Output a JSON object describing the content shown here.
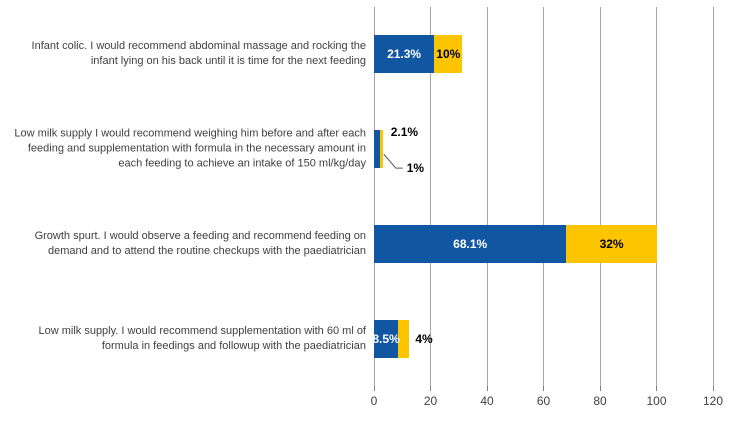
{
  "chart_data": {
    "type": "bar",
    "orientation": "horizontal",
    "stacked": true,
    "title": "",
    "xlabel": "",
    "ylabel": "",
    "xlim": [
      0,
      120
    ],
    "x_ticks": [
      0,
      20,
      40,
      60,
      80,
      100,
      120
    ],
    "grid": "vertical",
    "legend": "none",
    "categories": [
      "Infant colic. I would recommend abdominal massage and rocking the infant lying on his back until it is time for the next feeding",
      "Low milk supply I would recommend weighing him before and after each feeding and supplementation with formula in the necessary amount in each feeding to achieve an intake of 150 ml/kg/day",
      "Growth spurt. I would observe a feeding and recommend feeding on demand and to attend the routine checkups with the paediatrician",
      "Low milk supply. I would recommend supplementation with 60 ml of formula in feedings and followup with the paediatrician"
    ],
    "series": [
      {
        "name": "blue",
        "color": "#1156a1",
        "values": [
          21.3,
          2.1,
          68.1,
          8.5
        ],
        "labels": [
          "21.3%",
          "2.1%",
          "68.1%",
          "8.5%"
        ]
      },
      {
        "name": "yellow",
        "color": "#fdc500",
        "values": [
          10,
          1,
          32,
          4
        ],
        "labels": [
          "10%",
          "1%",
          "32%",
          "4%"
        ]
      }
    ]
  },
  "colors": {
    "background": "#ffffff",
    "gridline": "#a6a6a6",
    "tick": "#7f7f7f",
    "category_text": "#3f3f3f",
    "axis_text": "#404040",
    "label_on_blue": "#ffffff",
    "label_on_yellow": "#000000",
    "leader_line": "#595959"
  }
}
